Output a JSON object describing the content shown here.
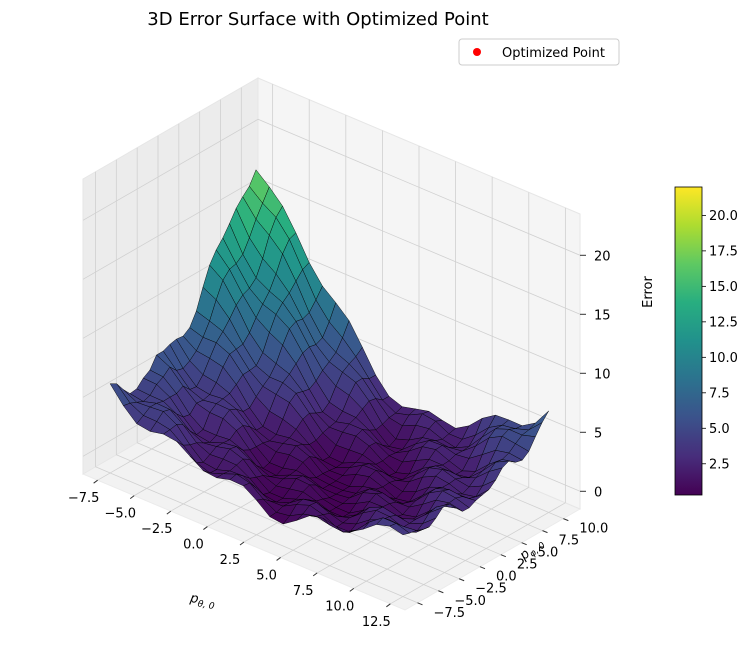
{
  "chart_data": {
    "type": "surface3d",
    "title": "3D Error Surface with Optimized Point",
    "xlabel": "p_{θ,0}",
    "ylabel": "p_{φ,0}",
    "zlabel": "Error",
    "xlim": [
      -8.5,
      13.5
    ],
    "ylim": [
      -9,
      12
    ],
    "zlim": [
      -1.5,
      23.5
    ],
    "xticks": [
      "−7.5",
      "−5.0",
      "−2.5",
      "0.0",
      "2.5",
      "5.0",
      "7.5",
      "10.0",
      "12.5"
    ],
    "yticks": [
      "−7.5",
      "−5.0",
      "−2.5",
      "0.0",
      "2.5",
      "5.0",
      "7.5",
      "10.0"
    ],
    "zticks": [
      "0",
      "5",
      "10",
      "15",
      "20"
    ],
    "colorbar": {
      "colormap": "viridis",
      "range": [
        0.3,
        22
      ],
      "ticks": [
        "2.5",
        "5.0",
        "7.5",
        "10.0",
        "12.5",
        "15.0",
        "17.5",
        "20.0"
      ]
    },
    "series": [
      {
        "name": "Optimized Point",
        "type": "scatter3d",
        "color": "#ff0000"
      }
    ],
    "surface": {
      "description_shape": "V-shaped valley, high ridge (~22) near x=-7.5,y=10, minimum (~0.3) near x=4,y=-1, rising again to ~15 at x=12.5,y=10",
      "grid_rows": 22,
      "grid_cols": 22
    },
    "grid": true,
    "legend": {
      "position": "top-right"
    }
  }
}
